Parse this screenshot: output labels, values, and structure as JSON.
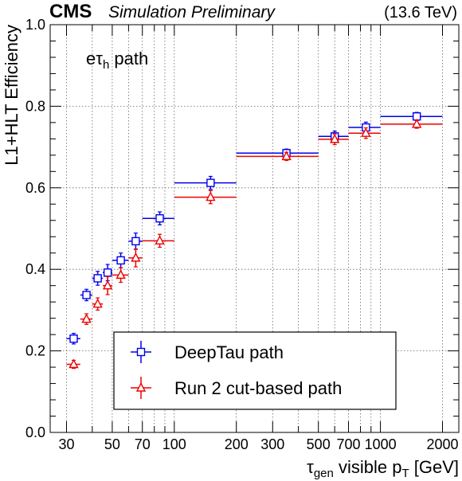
{
  "header": {
    "cms": "CMS",
    "tag": "Simulation Preliminary",
    "energy": "(13.6 TeV)"
  },
  "chart_data": {
    "type": "scatter",
    "annotation": {
      "main": "eτ",
      "sub": "h",
      "rest": " path"
    },
    "xlabel": {
      "main": "τ",
      "sub1": "gen",
      "mid": " visible p",
      "sub2": "T",
      "tail": " [GeV]"
    },
    "ylabel": "L1+HLT Efficiency",
    "xscale": "log",
    "xlim": [
      25,
      2400
    ],
    "ylim": [
      0.0,
      1.0
    ],
    "grid": true,
    "legend_position": "bottom-right",
    "xticks": [
      {
        "v": 30,
        "label": "30"
      },
      {
        "v": 50,
        "label": "50"
      },
      {
        "v": 70,
        "label": "70"
      },
      {
        "v": 100,
        "label": "100"
      },
      {
        "v": 200,
        "label": "200"
      },
      {
        "v": 300,
        "label": "300"
      },
      {
        "v": 500,
        "label": "500"
      },
      {
        "v": 700,
        "label": "700"
      },
      {
        "v": 1000,
        "label": "1000"
      },
      {
        "v": 2000,
        "label": "2000"
      }
    ],
    "yticks": [
      {
        "v": 0.0,
        "label": "0.0"
      },
      {
        "v": 0.2,
        "label": "0.2"
      },
      {
        "v": 0.4,
        "label": "0.4"
      },
      {
        "v": 0.6,
        "label": "0.6"
      },
      {
        "v": 0.8,
        "label": "0.8"
      },
      {
        "v": 1.0,
        "label": "1.0"
      }
    ],
    "xgrid": [
      30,
      40,
      50,
      60,
      70,
      80,
      90,
      100,
      200,
      300,
      400,
      500,
      600,
      700,
      800,
      900,
      1000,
      2000
    ],
    "series": [
      {
        "name": "DeepTau path",
        "color": "#0000ee",
        "marker": "open-square",
        "points": [
          {
            "x": 32.5,
            "xlo": 30,
            "xhi": 35,
            "y": 0.23,
            "err": 0.013
          },
          {
            "x": 37.5,
            "xlo": 35,
            "xhi": 40,
            "y": 0.337,
            "err": 0.014
          },
          {
            "x": 42.5,
            "xlo": 40,
            "xhi": 45,
            "y": 0.378,
            "err": 0.017
          },
          {
            "x": 47.5,
            "xlo": 45,
            "xhi": 50,
            "y": 0.392,
            "err": 0.02
          },
          {
            "x": 55,
            "xlo": 50,
            "xhi": 60,
            "y": 0.422,
            "err": 0.018
          },
          {
            "x": 65,
            "xlo": 60,
            "xhi": 70,
            "y": 0.469,
            "err": 0.02
          },
          {
            "x": 85,
            "xlo": 70,
            "xhi": 100,
            "y": 0.525,
            "err": 0.016
          },
          {
            "x": 150,
            "xlo": 100,
            "xhi": 200,
            "y": 0.612,
            "err": 0.016
          },
          {
            "x": 350,
            "xlo": 200,
            "xhi": 500,
            "y": 0.685,
            "err": 0.01
          },
          {
            "x": 600,
            "xlo": 500,
            "xhi": 700,
            "y": 0.726,
            "err": 0.013
          },
          {
            "x": 850,
            "xlo": 700,
            "xhi": 1000,
            "y": 0.748,
            "err": 0.013
          },
          {
            "x": 1500,
            "xlo": 1000,
            "xhi": 2000,
            "y": 0.775,
            "err": 0.01
          }
        ]
      },
      {
        "name": "Run 2 cut-based path",
        "color": "#ee0000",
        "marker": "open-triangle",
        "points": [
          {
            "x": 32.5,
            "xlo": 30,
            "xhi": 35,
            "y": 0.167,
            "err": 0.01
          },
          {
            "x": 37.5,
            "xlo": 35,
            "xhi": 40,
            "y": 0.278,
            "err": 0.013
          },
          {
            "x": 42.5,
            "xlo": 40,
            "xhi": 45,
            "y": 0.315,
            "err": 0.015
          },
          {
            "x": 47.5,
            "xlo": 45,
            "xhi": 50,
            "y": 0.36,
            "err": 0.022
          },
          {
            "x": 55,
            "xlo": 50,
            "xhi": 60,
            "y": 0.386,
            "err": 0.018
          },
          {
            "x": 65,
            "xlo": 60,
            "xhi": 70,
            "y": 0.428,
            "err": 0.022
          },
          {
            "x": 85,
            "xlo": 70,
            "xhi": 100,
            "y": 0.47,
            "err": 0.016
          },
          {
            "x": 150,
            "xlo": 100,
            "xhi": 200,
            "y": 0.577,
            "err": 0.016
          },
          {
            "x": 350,
            "xlo": 200,
            "xhi": 500,
            "y": 0.677,
            "err": 0.01
          },
          {
            "x": 600,
            "xlo": 500,
            "xhi": 700,
            "y": 0.719,
            "err": 0.013
          },
          {
            "x": 850,
            "xlo": 700,
            "xhi": 1000,
            "y": 0.734,
            "err": 0.013
          },
          {
            "x": 1500,
            "xlo": 1000,
            "xhi": 2000,
            "y": 0.756,
            "err": 0.01
          }
        ]
      }
    ]
  }
}
